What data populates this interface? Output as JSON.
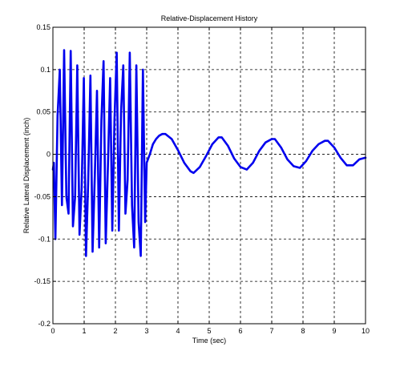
{
  "chart_data": {
    "type": "line",
    "title": "Relative-Displacement History",
    "xlabel": "Time (sec)",
    "ylabel": "Relative Lateral Displacement (inch)",
    "xlim": [
      0,
      10
    ],
    "ylim": [
      -0.2,
      0.15
    ],
    "xticks": [
      0,
      1,
      2,
      3,
      4,
      5,
      6,
      7,
      8,
      9,
      10
    ],
    "yticks": [
      -0.2,
      -0.15,
      -0.1,
      -0.05,
      0,
      0.05,
      0.1,
      0.15
    ],
    "xtick_labels": [
      "0",
      "1",
      "2",
      "3",
      "4",
      "5",
      "6",
      "7",
      "8",
      "9",
      "10"
    ],
    "ytick_labels": [
      "-0.2",
      "-0.15",
      "-0.1",
      "-0.05",
      "0",
      "0.05",
      "0.1",
      "0.15"
    ],
    "grid": true,
    "series": [
      {
        "color": "#0000ee",
        "x": [
          0,
          0.03,
          0.08,
          0.15,
          0.22,
          0.29,
          0.36,
          0.43,
          0.5,
          0.57,
          0.64,
          0.71,
          0.78,
          0.85,
          0.92,
          0.99,
          1.06,
          1.13,
          1.2,
          1.27,
          1.34,
          1.41,
          1.48,
          1.55,
          1.62,
          1.69,
          1.76,
          1.83,
          1.9,
          1.97,
          2.04,
          2.11,
          2.18,
          2.25,
          2.32,
          2.39,
          2.46,
          2.53,
          2.6,
          2.67,
          2.74,
          2.81,
          2.88,
          2.95,
          3.0,
          3.1,
          3.2,
          3.3,
          3.4,
          3.5,
          3.6,
          3.8,
          4.0,
          4.2,
          4.4,
          4.5,
          4.7,
          4.9,
          5.1,
          5.3,
          5.4,
          5.6,
          5.8,
          6.0,
          6.2,
          6.4,
          6.6,
          6.8,
          7.0,
          7.1,
          7.3,
          7.5,
          7.7,
          7.9,
          8.1,
          8.3,
          8.5,
          8.7,
          8.8,
          9.0,
          9.2,
          9.4,
          9.6,
          9.8,
          10.0
        ],
        "y": [
          -0.018,
          -0.01,
          -0.1,
          0.045,
          0.1,
          -0.06,
          0.123,
          -0.05,
          -0.07,
          0.122,
          -0.085,
          -0.05,
          0.105,
          -0.095,
          -0.04,
          0.09,
          -0.12,
          -0.03,
          0.093,
          -0.115,
          -0.025,
          0.075,
          -0.11,
          0.04,
          0.11,
          -0.105,
          -0.015,
          0.09,
          -0.09,
          0.04,
          0.12,
          -0.09,
          0.05,
          0.105,
          -0.07,
          -0.03,
          0.12,
          -0.06,
          -0.11,
          0.105,
          -0.08,
          -0.12,
          0.1,
          -0.08,
          -0.01,
          0.0,
          0.012,
          0.018,
          0.022,
          0.024,
          0.024,
          0.018,
          0.005,
          -0.01,
          -0.02,
          -0.022,
          -0.015,
          -0.002,
          0.012,
          0.02,
          0.02,
          0.01,
          -0.005,
          -0.015,
          -0.018,
          -0.01,
          0.004,
          0.014,
          0.018,
          0.018,
          0.008,
          -0.006,
          -0.014,
          -0.016,
          -0.008,
          0.004,
          0.012,
          0.016,
          0.016,
          0.008,
          -0.004,
          -0.013,
          -0.013,
          -0.006,
          -0.004
        ]
      }
    ]
  }
}
